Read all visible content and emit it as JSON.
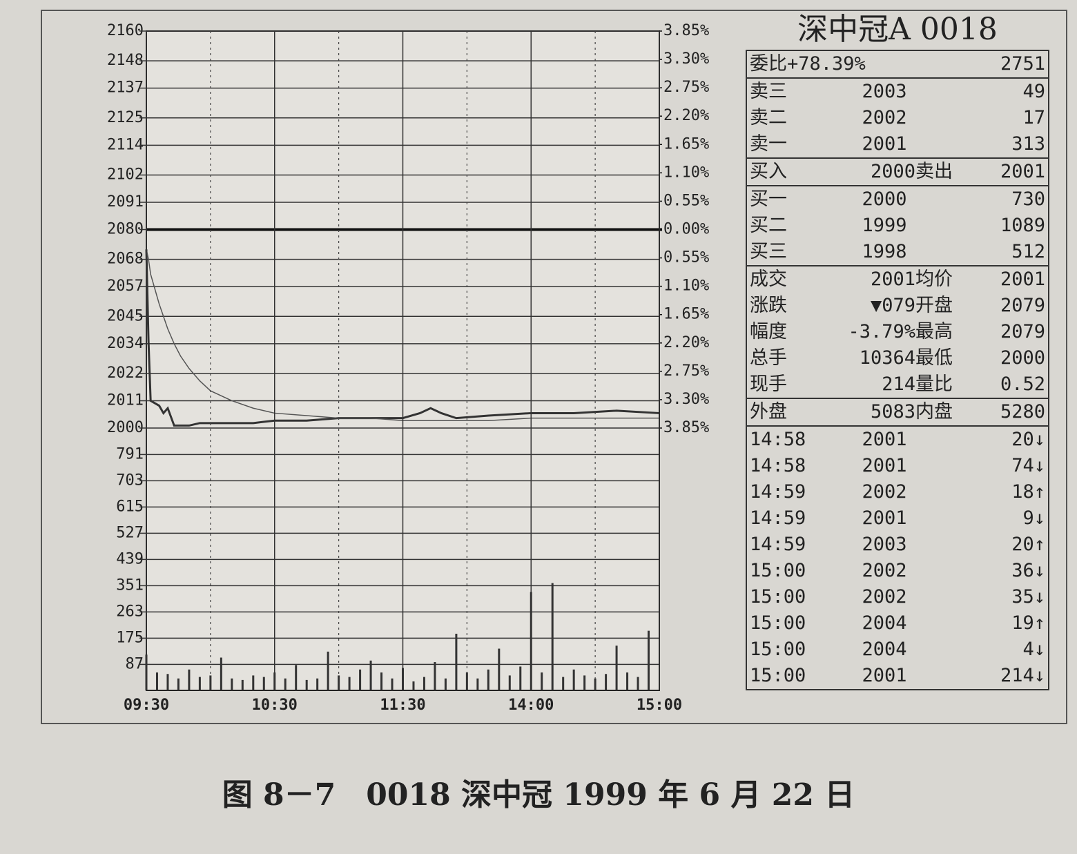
{
  "chart_data": [
    {
      "type": "line",
      "x": [
        0,
        1,
        2,
        4,
        6,
        8,
        10,
        13,
        16,
        20,
        25,
        30,
        40,
        50,
        60,
        75,
        90,
        105,
        120,
        128,
        133,
        138,
        145,
        160,
        180,
        200,
        220,
        240
      ],
      "xlim": [
        0,
        240
      ],
      "ylim": [
        2000,
        2160
      ],
      "yticks": [
        2160,
        2148,
        2137,
        2125,
        2114,
        2102,
        2091,
        2080,
        2068,
        2057,
        2045,
        2034,
        2022,
        2011,
        2000
      ],
      "y2lim": [
        -3.85,
        3.85
      ],
      "y2ticks": [
        {
          "value": 3.85,
          "label": "3.85%"
        },
        {
          "value": 3.3,
          "label": "3.30%"
        },
        {
          "value": 2.75,
          "label": "2.75%"
        },
        {
          "value": 2.2,
          "label": "2.20%"
        },
        {
          "value": 1.65,
          "label": "1.65%"
        },
        {
          "value": 1.1,
          "label": "1.10%"
        },
        {
          "value": 0.55,
          "label": "0.55%"
        },
        {
          "value": 0,
          "label": "0.00%"
        },
        {
          "value": -0.55,
          "label": "0.55%"
        },
        {
          "value": -1.1,
          "label": "1.10%"
        },
        {
          "value": -1.65,
          "label": "1.65%"
        },
        {
          "value": -2.2,
          "label": "2.20%"
        },
        {
          "value": -2.75,
          "label": "2.75%"
        },
        {
          "value": -3.3,
          "label": "3.30%"
        },
        {
          "value": -3.85,
          "label": "3.85%"
        }
      ],
      "grid": true,
      "series": [
        {
          "color": "#333333",
          "values": [
            2072,
            2035,
            2011,
            2010,
            2009,
            2006,
            2008,
            2001,
            2001,
            2001,
            2002,
            2002,
            2002,
            2002,
            2003,
            2003,
            2004,
            2004,
            2004,
            2006,
            2008,
            2006,
            2004,
            2005,
            2006,
            2006,
            2007,
            2006
          ]
        },
        {
          "color": "#555555",
          "values": [
            2072,
            2068,
            2062,
            2056,
            2050,
            2045,
            2040,
            2034,
            2029,
            2024,
            2019,
            2015,
            2011,
            2008,
            2006,
            2005,
            2004,
            2004,
            2003,
            2003,
            2003,
            2003,
            2003,
            2003,
            2004,
            2004,
            2004,
            2004
          ]
        }
      ]
    },
    {
      "type": "bar",
      "x": [
        0,
        5,
        10,
        15,
        20,
        25,
        30,
        35,
        40,
        45,
        50,
        55,
        60,
        65,
        70,
        75,
        80,
        85,
        90,
        95,
        100,
        105,
        110,
        115,
        120,
        125,
        130,
        135,
        140,
        145,
        150,
        155,
        160,
        165,
        170,
        175,
        180,
        185,
        190,
        195,
        200,
        205,
        210,
        215,
        220,
        225,
        230,
        235
      ],
      "values": [
        120,
        60,
        55,
        40,
        70,
        45,
        50,
        110,
        40,
        35,
        50,
        45,
        60,
        40,
        85,
        35,
        40,
        130,
        50,
        45,
        70,
        100,
        60,
        40,
        75,
        30,
        45,
        95,
        40,
        190,
        60,
        40,
        70,
        140,
        50,
        80,
        330,
        60,
        360,
        45,
        70,
        50,
        40,
        55,
        150,
        60,
        45,
        200
      ],
      "color": "#333333",
      "xlim": [
        0,
        240
      ],
      "xticks": [
        {
          "value": 0,
          "label": "09:30"
        },
        {
          "value": 60,
          "label": "10:30"
        },
        {
          "value": 120,
          "label": "11:30"
        },
        {
          "value": 180,
          "label": "14:00"
        },
        {
          "value": 240,
          "label": "15:00"
        }
      ],
      "ylim": [
        0,
        880
      ],
      "yticks": [
        791,
        703,
        615,
        527,
        439,
        351,
        263,
        175,
        87
      ],
      "grid": true
    }
  ],
  "quote_panel": {
    "title": "深中冠A 0018",
    "groups": [
      [
        [
          "委比+78.39%",
          "2751"
        ]
      ],
      [
        [
          "卖三",
          "2003",
          "49"
        ],
        [
          "卖二",
          "2002",
          "17"
        ],
        [
          "卖一",
          "2001",
          "313"
        ]
      ],
      [
        [
          "买入",
          "2000",
          "卖出",
          "2001"
        ]
      ],
      [
        [
          "买一",
          "2000",
          "730"
        ],
        [
          "买二",
          "1999",
          "1089"
        ],
        [
          "买三",
          "1998",
          "512"
        ]
      ],
      [
        [
          "成交",
          "2001",
          "均价",
          "2001"
        ],
        [
          "涨跌",
          "▼079",
          "开盘",
          "2079"
        ],
        [
          "幅度",
          "-3.79%",
          "最高",
          "2079"
        ],
        [
          "总手",
          "10364",
          "最低",
          "2000"
        ],
        [
          "现手",
          "214",
          "量比",
          "0.52"
        ]
      ],
      [
        [
          "外盘",
          "5083",
          "内盘",
          "5280"
        ]
      ],
      [
        [
          "14:58",
          "2001",
          "20↓"
        ],
        [
          "14:58",
          "2001",
          "74↓"
        ],
        [
          "14:59",
          "2002",
          "18↑"
        ],
        [
          "14:59",
          "2001",
          "9↓"
        ],
        [
          "14:59",
          "2003",
          "20↑"
        ],
        [
          "15:00",
          "2002",
          "36↓"
        ],
        [
          "15:00",
          "2002",
          "35↓"
        ],
        [
          "15:00",
          "2004",
          "19↑"
        ],
        [
          "15:00",
          "2004",
          "4↓"
        ],
        [
          "15:00",
          "2001",
          "214↓"
        ]
      ]
    ]
  },
  "caption": "图 8－7　0018 深中冠 1999 年 6 月 22 日"
}
